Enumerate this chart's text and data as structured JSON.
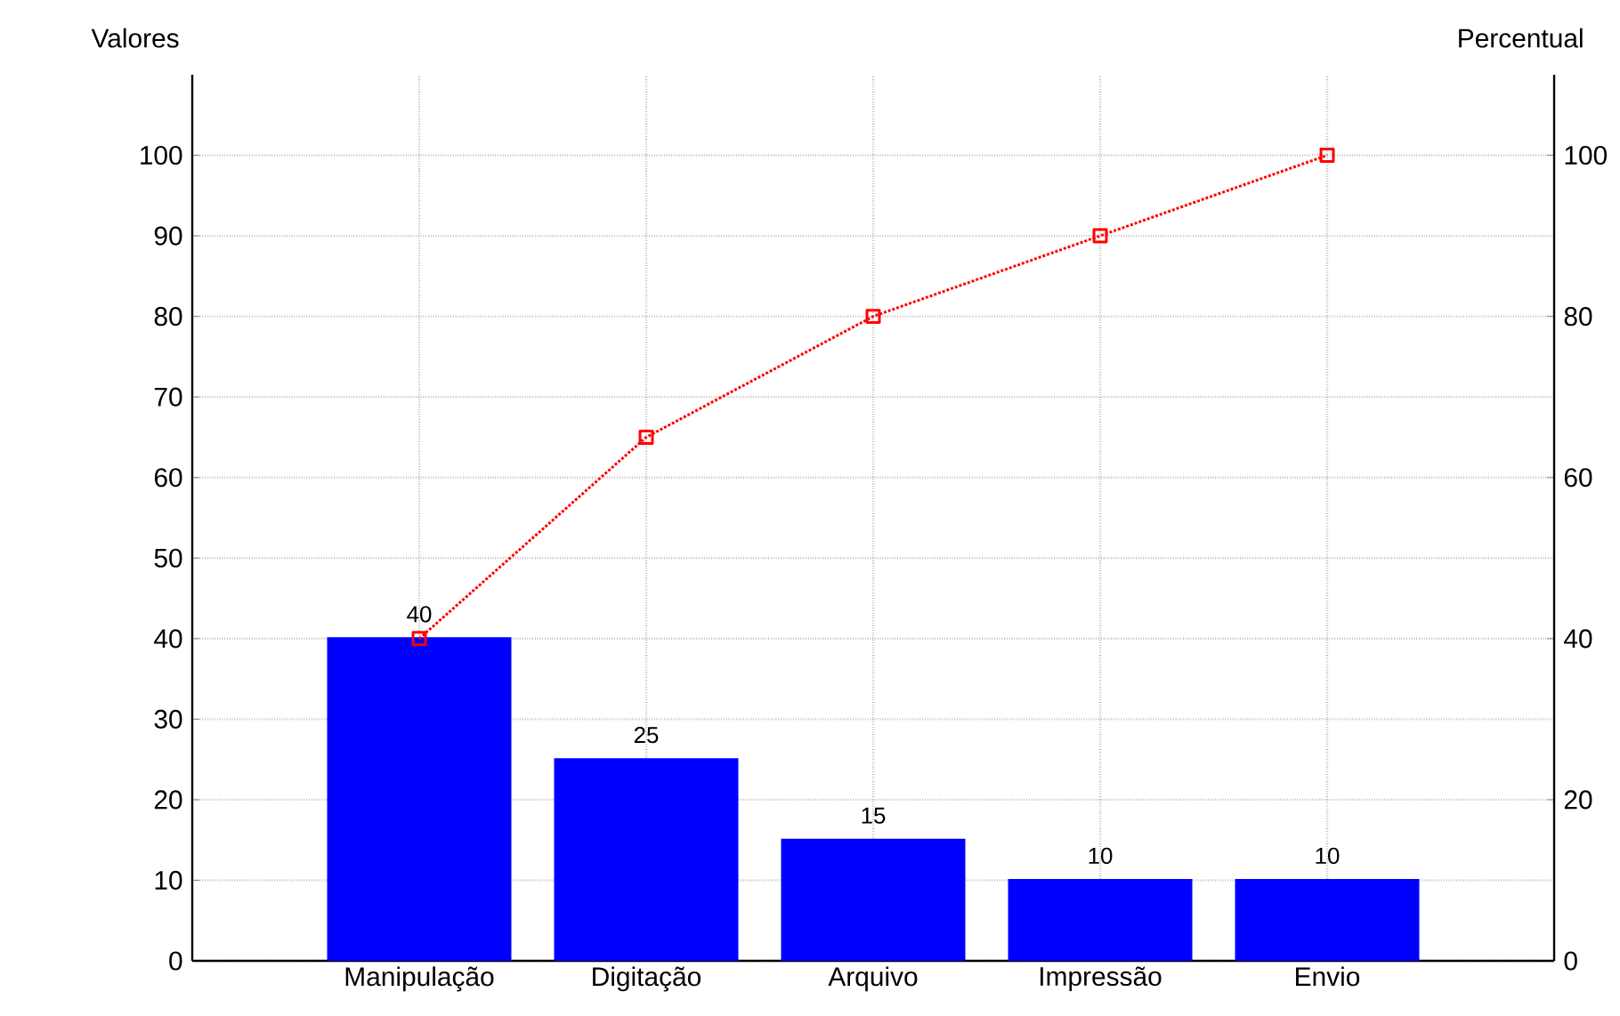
{
  "chart_data": {
    "type": "bar",
    "ylabel": "Valores",
    "y2label": "Percentual",
    "categories": [
      "Manipulação",
      "Digitação",
      "Arquivo",
      "Impressão",
      "Envio"
    ],
    "series": [
      {
        "color": "#0000ff",
        "values": [
          40,
          25,
          15,
          10,
          10
        ],
        "value_labels": [
          "40",
          "25",
          "15",
          "10",
          "10"
        ]
      },
      {
        "type": "line",
        "axis": "y2",
        "color": "#ff0000",
        "marker": "square",
        "line_style": "dotted",
        "values": [
          40,
          65,
          80,
          90,
          100
        ]
      }
    ],
    "ylim": [
      0,
      110
    ],
    "yticks": [
      0,
      10,
      20,
      30,
      40,
      50,
      60,
      70,
      80,
      90,
      100
    ],
    "y2lim": [
      0,
      110
    ],
    "y2ticks": [
      0,
      20,
      40,
      60,
      80,
      100
    ],
    "grid": true
  }
}
